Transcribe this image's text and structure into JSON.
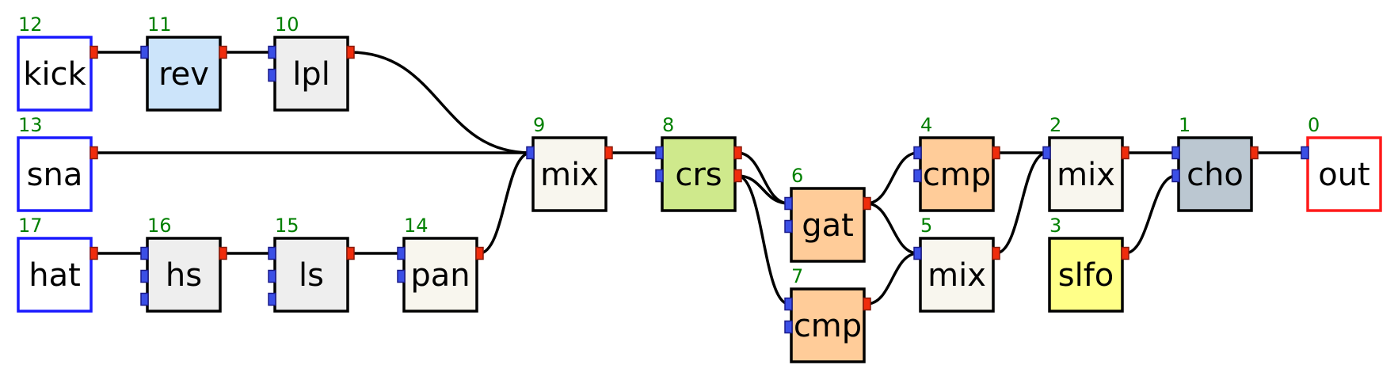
{
  "nodes": [
    {
      "key": "kick",
      "id": "12",
      "label": "kick",
      "fill": "#ffffff",
      "border": "#1a1aff",
      "inputs": 0,
      "outputs": 1
    },
    {
      "key": "rev",
      "id": "11",
      "label": "rev",
      "fill": "#cce4fa",
      "border": "#000000",
      "inputs": 1,
      "outputs": 1
    },
    {
      "key": "lpl",
      "id": "10",
      "label": "lpl",
      "fill": "#eeeeee",
      "border": "#000000",
      "inputs": 2,
      "outputs": 1
    },
    {
      "key": "sna",
      "id": "13",
      "label": "sna",
      "fill": "#ffffff",
      "border": "#1a1aff",
      "inputs": 0,
      "outputs": 1
    },
    {
      "key": "hat",
      "id": "17",
      "label": "hat",
      "fill": "#ffffff",
      "border": "#1a1aff",
      "inputs": 0,
      "outputs": 1
    },
    {
      "key": "hs",
      "id": "16",
      "label": "hs",
      "fill": "#eeeeee",
      "border": "#000000",
      "inputs": 3,
      "outputs": 1
    },
    {
      "key": "ls",
      "id": "15",
      "label": "ls",
      "fill": "#eeeeee",
      "border": "#000000",
      "inputs": 3,
      "outputs": 1
    },
    {
      "key": "pan",
      "id": "14",
      "label": "pan",
      "fill": "#f8f6ee",
      "border": "#000000",
      "inputs": 2,
      "outputs": 1
    },
    {
      "key": "mix9",
      "id": "9",
      "label": "mix",
      "fill": "#f8f6ee",
      "border": "#000000",
      "inputs": 1,
      "outputs": 1
    },
    {
      "key": "crs",
      "id": "8",
      "label": "crs",
      "fill": "#cfe98c",
      "border": "#000000",
      "inputs": 2,
      "outputs": 2
    },
    {
      "key": "gat",
      "id": "6",
      "label": "gat",
      "fill": "#ffcc99",
      "border": "#000000",
      "inputs": 2,
      "outputs": 1
    },
    {
      "key": "cmp7",
      "id": "7",
      "label": "cmp",
      "fill": "#ffcc99",
      "border": "#000000",
      "inputs": 2,
      "outputs": 1
    },
    {
      "key": "cmp4",
      "id": "4",
      "label": "cmp",
      "fill": "#ffcc99",
      "border": "#000000",
      "inputs": 2,
      "outputs": 1
    },
    {
      "key": "mix5",
      "id": "5",
      "label": "mix",
      "fill": "#f8f6ee",
      "border": "#000000",
      "inputs": 1,
      "outputs": 1
    },
    {
      "key": "mix2",
      "id": "2",
      "label": "mix",
      "fill": "#f8f6ee",
      "border": "#000000",
      "inputs": 1,
      "outputs": 1
    },
    {
      "key": "slfo",
      "id": "3",
      "label": "slfo",
      "fill": "#ffff88",
      "border": "#000000",
      "inputs": 0,
      "outputs": 1
    },
    {
      "key": "cho",
      "id": "1",
      "label": "cho",
      "fill": "#bbc7d1",
      "border": "#000000",
      "inputs": 2,
      "outputs": 1
    },
    {
      "key": "out",
      "id": "0",
      "label": "out",
      "fill": "#ffffff",
      "border": "#ff1a1a",
      "inputs": 1,
      "outputs": 0
    }
  ],
  "edges": [
    {
      "from": "kick",
      "out": 0,
      "to": "rev",
      "in": 0
    },
    {
      "from": "rev",
      "out": 0,
      "to": "lpl",
      "in": 0
    },
    {
      "from": "lpl",
      "out": 0,
      "to": "mix9",
      "in": 0
    },
    {
      "from": "sna",
      "out": 0,
      "to": "mix9",
      "in": 0
    },
    {
      "from": "hat",
      "out": 0,
      "to": "hs",
      "in": 0
    },
    {
      "from": "hs",
      "out": 0,
      "to": "ls",
      "in": 0
    },
    {
      "from": "ls",
      "out": 0,
      "to": "pan",
      "in": 0
    },
    {
      "from": "pan",
      "out": 0,
      "to": "mix9",
      "in": 0
    },
    {
      "from": "mix9",
      "out": 0,
      "to": "crs",
      "in": 0
    },
    {
      "from": "crs",
      "out": 0,
      "to": "gat",
      "in": 0
    },
    {
      "from": "crs",
      "out": 1,
      "to": "gat",
      "in": 0
    },
    {
      "from": "crs",
      "out": 1,
      "to": "cmp7",
      "in": 0
    },
    {
      "from": "gat",
      "out": 0,
      "to": "cmp4",
      "in": 0
    },
    {
      "from": "gat",
      "out": 0,
      "to": "mix5",
      "in": 0
    },
    {
      "from": "cmp7",
      "out": 0,
      "to": "mix5",
      "in": 0
    },
    {
      "from": "cmp4",
      "out": 0,
      "to": "mix2",
      "in": 0
    },
    {
      "from": "mix5",
      "out": 0,
      "to": "mix2",
      "in": 0
    },
    {
      "from": "mix2",
      "out": 0,
      "to": "cho",
      "in": 0
    },
    {
      "from": "slfo",
      "out": 0,
      "to": "cho",
      "in": 1
    },
    {
      "from": "cho",
      "out": 0,
      "to": "out",
      "in": 0
    }
  ]
}
